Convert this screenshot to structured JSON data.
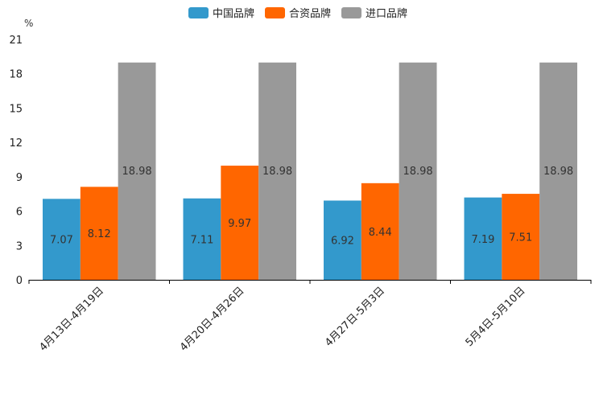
{
  "chart_data": {
    "type": "bar",
    "title": "",
    "ylabel": "%",
    "xlabel": "",
    "ylim": [
      0,
      21
    ],
    "yticks": [
      0,
      3,
      6,
      9,
      12,
      15,
      18,
      21
    ],
    "grid": false,
    "legend_position": "top-center",
    "categories": [
      "4月13日-4月19日",
      "4月20日-4月26日",
      "4月27日-5月3日",
      "5月4日-5月10日"
    ],
    "series": [
      {
        "name": "中国品牌",
        "color": "#3399cc",
        "values": [
          7.07,
          7.11,
          6.92,
          7.19
        ]
      },
      {
        "name": "合资品牌",
        "color": "#ff6600",
        "values": [
          8.12,
          9.97,
          8.44,
          7.51
        ]
      },
      {
        "name": "进口品牌",
        "color": "#999999",
        "values": [
          18.98,
          18.98,
          18.98,
          18.98
        ]
      }
    ]
  }
}
